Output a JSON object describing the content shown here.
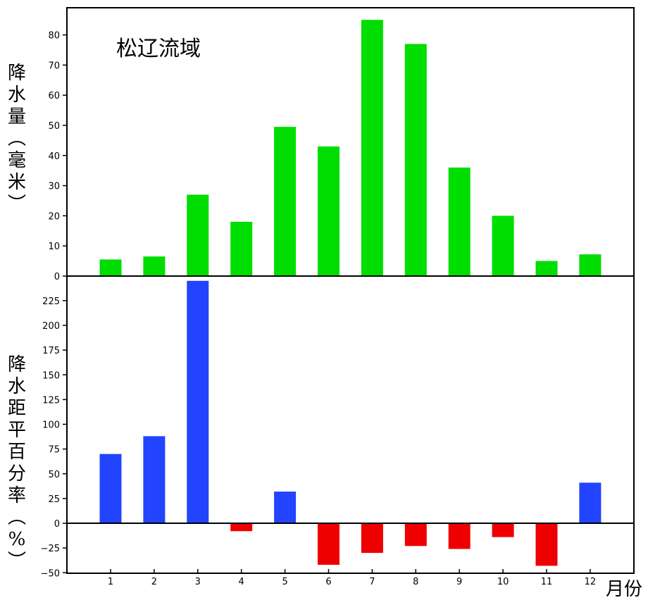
{
  "chart_data": [
    {
      "type": "bar",
      "title": "松辽流域",
      "ylabel": "降水量（毫米）",
      "xlabel": "",
      "categories": [
        "1",
        "2",
        "3",
        "4",
        "5",
        "6",
        "7",
        "8",
        "9",
        "10",
        "11",
        "12"
      ],
      "values": [
        5.5,
        6.5,
        27,
        18,
        49.5,
        43,
        85,
        77,
        36,
        20,
        5,
        7.2
      ],
      "ylim": [
        0,
        90
      ],
      "yticks": [
        0,
        10,
        20,
        30,
        40,
        50,
        60,
        70,
        80
      ],
      "ytick_labels": [
        "0",
        "10",
        "20",
        "30",
        "40",
        "50",
        "60",
        "70",
        "80"
      ],
      "bar_color": "#00dd00",
      "grid": false
    },
    {
      "type": "bar",
      "title": "",
      "ylabel": "降水距平百分率（%）",
      "xlabel": "月份",
      "categories": [
        "1",
        "2",
        "3",
        "4",
        "5",
        "6",
        "7",
        "8",
        "9",
        "10",
        "11",
        "12"
      ],
      "values": [
        70,
        88,
        245,
        -8,
        32,
        -42,
        -30,
        -23,
        -26,
        -14,
        -43,
        41
      ],
      "ylim": [
        -50,
        250
      ],
      "yticks": [
        -50,
        -25,
        0,
        25,
        50,
        75,
        100,
        125,
        150,
        175,
        200,
        225
      ],
      "ytick_labels": [
        "−50",
        "−25",
        "0",
        "25",
        "50",
        "75",
        "100",
        "125",
        "150",
        "175",
        "200",
        "225"
      ],
      "positive_color": "#2244ff",
      "negative_color": "#ee0000",
      "grid": false
    }
  ]
}
